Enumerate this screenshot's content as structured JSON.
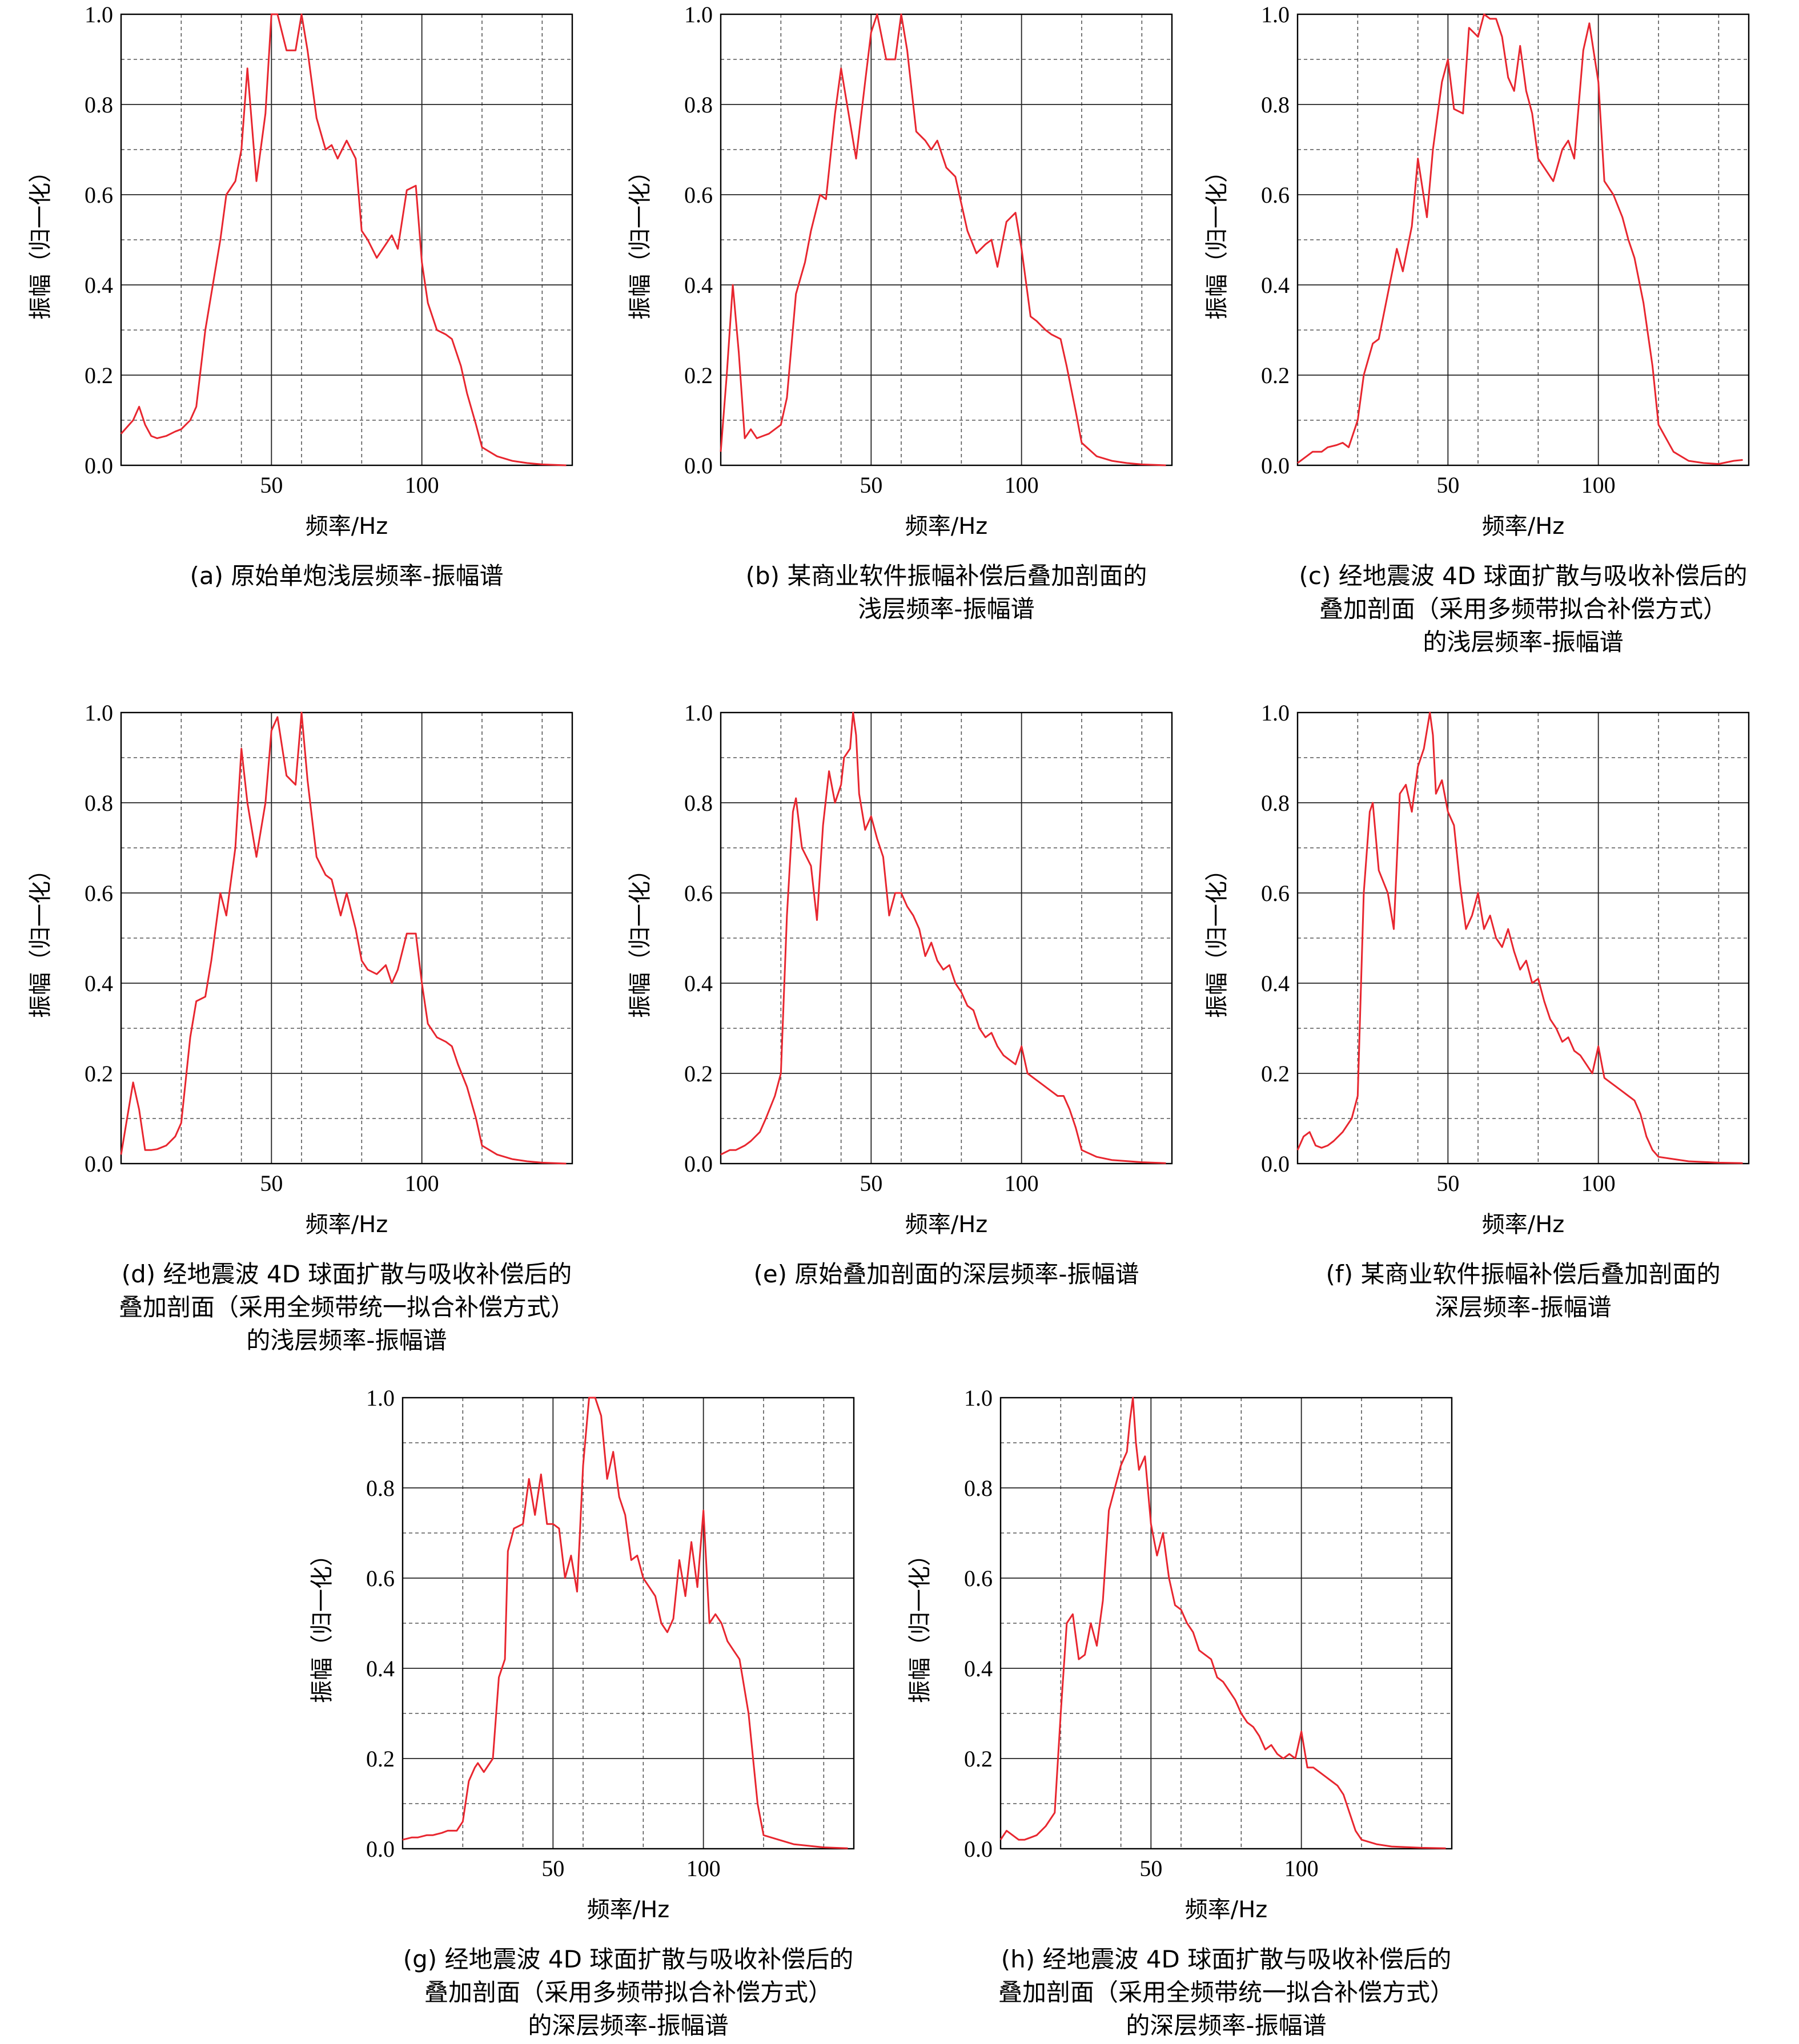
{
  "figure": {
    "xlabel": "频率/Hz",
    "ylabel": "振幅（归一化）",
    "xticks": [
      50,
      100
    ],
    "yticks": [
      "0.0",
      "0.2",
      "0.4",
      "0.6",
      "0.8",
      "1.0"
    ],
    "line_color": "#e8262f"
  },
  "chart_data": [
    {
      "type": "line",
      "caption": [
        "(a) 原始单炮浅层频率-振幅谱"
      ],
      "xlim": [
        0,
        150
      ],
      "ylim": [
        0,
        1.0
      ],
      "grid": true,
      "x": [
        0,
        4,
        6,
        8,
        10,
        12,
        15,
        18,
        20,
        23,
        25,
        28,
        30,
        33,
        35,
        38,
        40,
        42,
        45,
        48,
        50,
        52,
        55,
        58,
        60,
        62,
        65,
        68,
        70,
        72,
        75,
        78,
        80,
        82,
        85,
        88,
        90,
        92,
        95,
        98,
        100,
        102,
        105,
        108,
        110,
        113,
        115,
        118,
        120,
        125,
        130,
        135,
        140,
        148
      ],
      "y": [
        0.07,
        0.1,
        0.13,
        0.09,
        0.065,
        0.06,
        0.065,
        0.075,
        0.08,
        0.1,
        0.13,
        0.3,
        0.38,
        0.5,
        0.6,
        0.63,
        0.7,
        0.88,
        0.63,
        0.78,
        1.0,
        1.0,
        0.92,
        0.92,
        1.0,
        0.92,
        0.77,
        0.7,
        0.71,
        0.68,
        0.72,
        0.68,
        0.52,
        0.5,
        0.46,
        0.49,
        0.51,
        0.48,
        0.61,
        0.62,
        0.45,
        0.36,
        0.3,
        0.29,
        0.28,
        0.22,
        0.16,
        0.09,
        0.04,
        0.02,
        0.01,
        0.005,
        0.002,
        0.0
      ]
    },
    {
      "type": "line",
      "caption": [
        "(b) 某商业软件振幅补偿后叠加剖面的",
        "浅层频率-振幅谱"
      ],
      "xlim": [
        0,
        150
      ],
      "ylim": [
        0,
        1.0
      ],
      "grid": true,
      "x": [
        0,
        2,
        4,
        6,
        8,
        10,
        12,
        14,
        16,
        18,
        20,
        22,
        25,
        28,
        30,
        33,
        35,
        38,
        40,
        42,
        45,
        48,
        50,
        52,
        55,
        58,
        60,
        62,
        65,
        68,
        70,
        72,
        75,
        78,
        80,
        82,
        85,
        88,
        90,
        92,
        95,
        98,
        100,
        103,
        105,
        108,
        110,
        113,
        115,
        118,
        120,
        125,
        130,
        135,
        140,
        148
      ],
      "y": [
        0.03,
        0.2,
        0.4,
        0.25,
        0.06,
        0.08,
        0.06,
        0.065,
        0.07,
        0.08,
        0.09,
        0.15,
        0.38,
        0.45,
        0.52,
        0.6,
        0.59,
        0.78,
        0.88,
        0.8,
        0.68,
        0.85,
        0.96,
        1.0,
        0.9,
        0.9,
        1.0,
        0.92,
        0.74,
        0.72,
        0.7,
        0.72,
        0.66,
        0.64,
        0.58,
        0.52,
        0.47,
        0.49,
        0.5,
        0.44,
        0.54,
        0.56,
        0.48,
        0.33,
        0.32,
        0.3,
        0.29,
        0.28,
        0.22,
        0.12,
        0.05,
        0.02,
        0.01,
        0.005,
        0.002,
        0.0
      ]
    },
    {
      "type": "line",
      "caption": [
        "(c) 经地震波 4D 球面扩散与吸收补偿后的",
        "叠加剖面（采用多频带拟合补偿方式）",
        "的浅层频率-振幅谱"
      ],
      "xlim": [
        0,
        150
      ],
      "ylim": [
        0,
        1.0
      ],
      "grid": true,
      "x": [
        0,
        3,
        5,
        8,
        10,
        13,
        15,
        17,
        20,
        22,
        25,
        27,
        30,
        33,
        35,
        38,
        40,
        43,
        45,
        48,
        50,
        52,
        55,
        57,
        60,
        62,
        64,
        66,
        68,
        70,
        72,
        74,
        76,
        78,
        80,
        82,
        85,
        88,
        90,
        92,
        95,
        97,
        100,
        102,
        105,
        108,
        110,
        112,
        115,
        118,
        120,
        125,
        130,
        135,
        140,
        145,
        148
      ],
      "y": [
        0.005,
        0.02,
        0.03,
        0.03,
        0.04,
        0.045,
        0.05,
        0.04,
        0.1,
        0.2,
        0.27,
        0.28,
        0.38,
        0.48,
        0.43,
        0.53,
        0.68,
        0.55,
        0.7,
        0.85,
        0.9,
        0.79,
        0.78,
        0.97,
        0.95,
        1.0,
        0.99,
        0.99,
        0.95,
        0.86,
        0.83,
        0.93,
        0.83,
        0.78,
        0.68,
        0.66,
        0.63,
        0.7,
        0.72,
        0.68,
        0.92,
        0.98,
        0.85,
        0.63,
        0.6,
        0.55,
        0.5,
        0.46,
        0.36,
        0.22,
        0.09,
        0.03,
        0.01,
        0.005,
        0.003,
        0.01,
        0.012
      ]
    },
    {
      "type": "line",
      "caption": [
        "(d) 经地震波 4D 球面扩散与吸收补偿后的",
        "叠加剖面（采用全频带统一拟合补偿方式）",
        "的浅层频率-振幅谱"
      ],
      "xlim": [
        0,
        150
      ],
      "ylim": [
        0,
        1.0
      ],
      "grid": true,
      "x": [
        0,
        2,
        4,
        6,
        8,
        10,
        12,
        15,
        18,
        20,
        23,
        25,
        28,
        30,
        33,
        35,
        38,
        40,
        42,
        45,
        48,
        50,
        52,
        55,
        58,
        60,
        62,
        65,
        68,
        70,
        73,
        75,
        78,
        80,
        82,
        85,
        88,
        90,
        92,
        95,
        98,
        100,
        102,
        105,
        108,
        110,
        112,
        115,
        118,
        120,
        125,
        130,
        135,
        140,
        148
      ],
      "y": [
        0.02,
        0.1,
        0.18,
        0.12,
        0.03,
        0.03,
        0.032,
        0.04,
        0.06,
        0.09,
        0.28,
        0.36,
        0.37,
        0.45,
        0.6,
        0.55,
        0.7,
        0.92,
        0.8,
        0.68,
        0.8,
        0.96,
        0.99,
        0.86,
        0.84,
        1.0,
        0.85,
        0.68,
        0.64,
        0.63,
        0.55,
        0.6,
        0.52,
        0.45,
        0.43,
        0.42,
        0.44,
        0.4,
        0.43,
        0.51,
        0.51,
        0.4,
        0.31,
        0.28,
        0.27,
        0.26,
        0.22,
        0.17,
        0.1,
        0.04,
        0.02,
        0.01,
        0.005,
        0.002,
        0.0
      ]
    },
    {
      "type": "line",
      "caption": [
        "(e) 原始叠加剖面的深层频率-振幅谱"
      ],
      "xlim": [
        0,
        150
      ],
      "ylim": [
        0,
        1.0
      ],
      "grid": true,
      "x": [
        0,
        3,
        5,
        8,
        10,
        13,
        15,
        18,
        20,
        22,
        24,
        25,
        27,
        30,
        32,
        34,
        36,
        38,
        40,
        41,
        43,
        44,
        45,
        46,
        48,
        50,
        52,
        54,
        56,
        58,
        60,
        62,
        64,
        66,
        68,
        70,
        72,
        74,
        76,
        78,
        80,
        82,
        84,
        86,
        88,
        90,
        92,
        94,
        96,
        98,
        100,
        102,
        104,
        106,
        108,
        110,
        112,
        114,
        116,
        118,
        120,
        125,
        130,
        140,
        148
      ],
      "y": [
        0.02,
        0.03,
        0.03,
        0.04,
        0.05,
        0.07,
        0.1,
        0.15,
        0.2,
        0.55,
        0.78,
        0.81,
        0.7,
        0.66,
        0.54,
        0.75,
        0.87,
        0.8,
        0.84,
        0.9,
        0.92,
        1.0,
        0.95,
        0.82,
        0.74,
        0.77,
        0.72,
        0.68,
        0.55,
        0.6,
        0.6,
        0.57,
        0.55,
        0.52,
        0.46,
        0.49,
        0.45,
        0.43,
        0.44,
        0.4,
        0.38,
        0.35,
        0.34,
        0.3,
        0.28,
        0.29,
        0.26,
        0.24,
        0.23,
        0.22,
        0.26,
        0.2,
        0.19,
        0.18,
        0.17,
        0.16,
        0.15,
        0.15,
        0.12,
        0.08,
        0.03,
        0.015,
        0.008,
        0.003,
        0.001
      ]
    },
    {
      "type": "line",
      "caption": [
        "(f) 某商业软件振幅补偿后叠加剖面的",
        "深层频率-振幅谱"
      ],
      "xlim": [
        0,
        150
      ],
      "ylim": [
        0,
        1.0
      ],
      "grid": true,
      "x": [
        0,
        2,
        4,
        6,
        8,
        10,
        12,
        15,
        18,
        20,
        22,
        24,
        25,
        27,
        30,
        32,
        34,
        36,
        38,
        40,
        42,
        44,
        45,
        46,
        48,
        50,
        52,
        54,
        56,
        58,
        60,
        62,
        64,
        66,
        68,
        70,
        72,
        74,
        76,
        78,
        80,
        82,
        84,
        86,
        88,
        90,
        92,
        94,
        96,
        98,
        100,
        102,
        104,
        106,
        108,
        110,
        112,
        114,
        116,
        118,
        120,
        125,
        130,
        140,
        148
      ],
      "y": [
        0.03,
        0.06,
        0.07,
        0.04,
        0.035,
        0.04,
        0.05,
        0.07,
        0.1,
        0.15,
        0.6,
        0.78,
        0.8,
        0.65,
        0.6,
        0.52,
        0.82,
        0.84,
        0.78,
        0.88,
        0.92,
        1.0,
        0.95,
        0.82,
        0.85,
        0.78,
        0.75,
        0.62,
        0.52,
        0.55,
        0.6,
        0.52,
        0.55,
        0.5,
        0.48,
        0.52,
        0.47,
        0.43,
        0.45,
        0.4,
        0.41,
        0.36,
        0.32,
        0.3,
        0.27,
        0.28,
        0.25,
        0.24,
        0.22,
        0.2,
        0.26,
        0.19,
        0.18,
        0.17,
        0.16,
        0.15,
        0.14,
        0.11,
        0.06,
        0.03,
        0.015,
        0.01,
        0.005,
        0.002,
        0.001
      ]
    },
    {
      "type": "line",
      "caption": [
        "(g) 经地震波 4D 球面扩散与吸收补偿后的",
        "叠加剖面（采用多频带拟合补偿方式）",
        "的深层频率-振幅谱"
      ],
      "xlim": [
        0,
        150
      ],
      "ylim": [
        0,
        1.0
      ],
      "grid": true,
      "x": [
        0,
        3,
        5,
        8,
        10,
        13,
        15,
        18,
        20,
        22,
        24,
        25,
        27,
        30,
        32,
        34,
        35,
        37,
        40,
        42,
        44,
        46,
        48,
        50,
        52,
        54,
        56,
        58,
        60,
        62,
        64,
        66,
        68,
        70,
        72,
        74,
        76,
        78,
        80,
        82,
        84,
        86,
        88,
        90,
        92,
        94,
        96,
        98,
        100,
        102,
        104,
        106,
        108,
        110,
        112,
        115,
        118,
        120,
        125,
        130,
        140,
        148
      ],
      "y": [
        0.02,
        0.025,
        0.025,
        0.03,
        0.03,
        0.035,
        0.04,
        0.04,
        0.06,
        0.15,
        0.18,
        0.19,
        0.17,
        0.2,
        0.38,
        0.42,
        0.66,
        0.71,
        0.72,
        0.82,
        0.74,
        0.83,
        0.72,
        0.72,
        0.71,
        0.6,
        0.65,
        0.57,
        0.85,
        1.0,
        1.0,
        0.96,
        0.82,
        0.88,
        0.78,
        0.74,
        0.64,
        0.65,
        0.6,
        0.58,
        0.56,
        0.5,
        0.48,
        0.51,
        0.64,
        0.56,
        0.68,
        0.58,
        0.75,
        0.5,
        0.52,
        0.5,
        0.46,
        0.44,
        0.42,
        0.3,
        0.1,
        0.03,
        0.02,
        0.01,
        0.003,
        0.001
      ]
    },
    {
      "type": "line",
      "caption": [
        "(h) 经地震波 4D 球面扩散与吸收补偿后的",
        "叠加剖面（采用全频带统一拟合补偿方式）",
        "的深层频率-振幅谱"
      ],
      "xlim": [
        0,
        150
      ],
      "ylim": [
        0,
        1.0
      ],
      "grid": true,
      "x": [
        0,
        2,
        4,
        6,
        8,
        10,
        12,
        15,
        18,
        20,
        22,
        24,
        26,
        28,
        30,
        32,
        34,
        36,
        38,
        40,
        42,
        43,
        44,
        45,
        46,
        48,
        50,
        52,
        54,
        56,
        58,
        60,
        62,
        64,
        66,
        68,
        70,
        72,
        74,
        76,
        78,
        80,
        82,
        84,
        86,
        88,
        90,
        92,
        94,
        96,
        98,
        100,
        102,
        104,
        106,
        108,
        110,
        112,
        114,
        116,
        118,
        120,
        125,
        130,
        140,
        148
      ],
      "y": [
        0.02,
        0.04,
        0.03,
        0.02,
        0.02,
        0.025,
        0.03,
        0.05,
        0.08,
        0.3,
        0.5,
        0.52,
        0.42,
        0.43,
        0.5,
        0.45,
        0.55,
        0.75,
        0.8,
        0.85,
        0.88,
        0.95,
        1.0,
        0.9,
        0.84,
        0.87,
        0.72,
        0.65,
        0.7,
        0.6,
        0.54,
        0.53,
        0.5,
        0.48,
        0.44,
        0.43,
        0.42,
        0.38,
        0.37,
        0.35,
        0.33,
        0.3,
        0.28,
        0.27,
        0.25,
        0.22,
        0.23,
        0.21,
        0.2,
        0.21,
        0.2,
        0.26,
        0.18,
        0.18,
        0.17,
        0.16,
        0.15,
        0.14,
        0.12,
        0.08,
        0.04,
        0.02,
        0.01,
        0.005,
        0.002,
        0.001
      ]
    }
  ]
}
